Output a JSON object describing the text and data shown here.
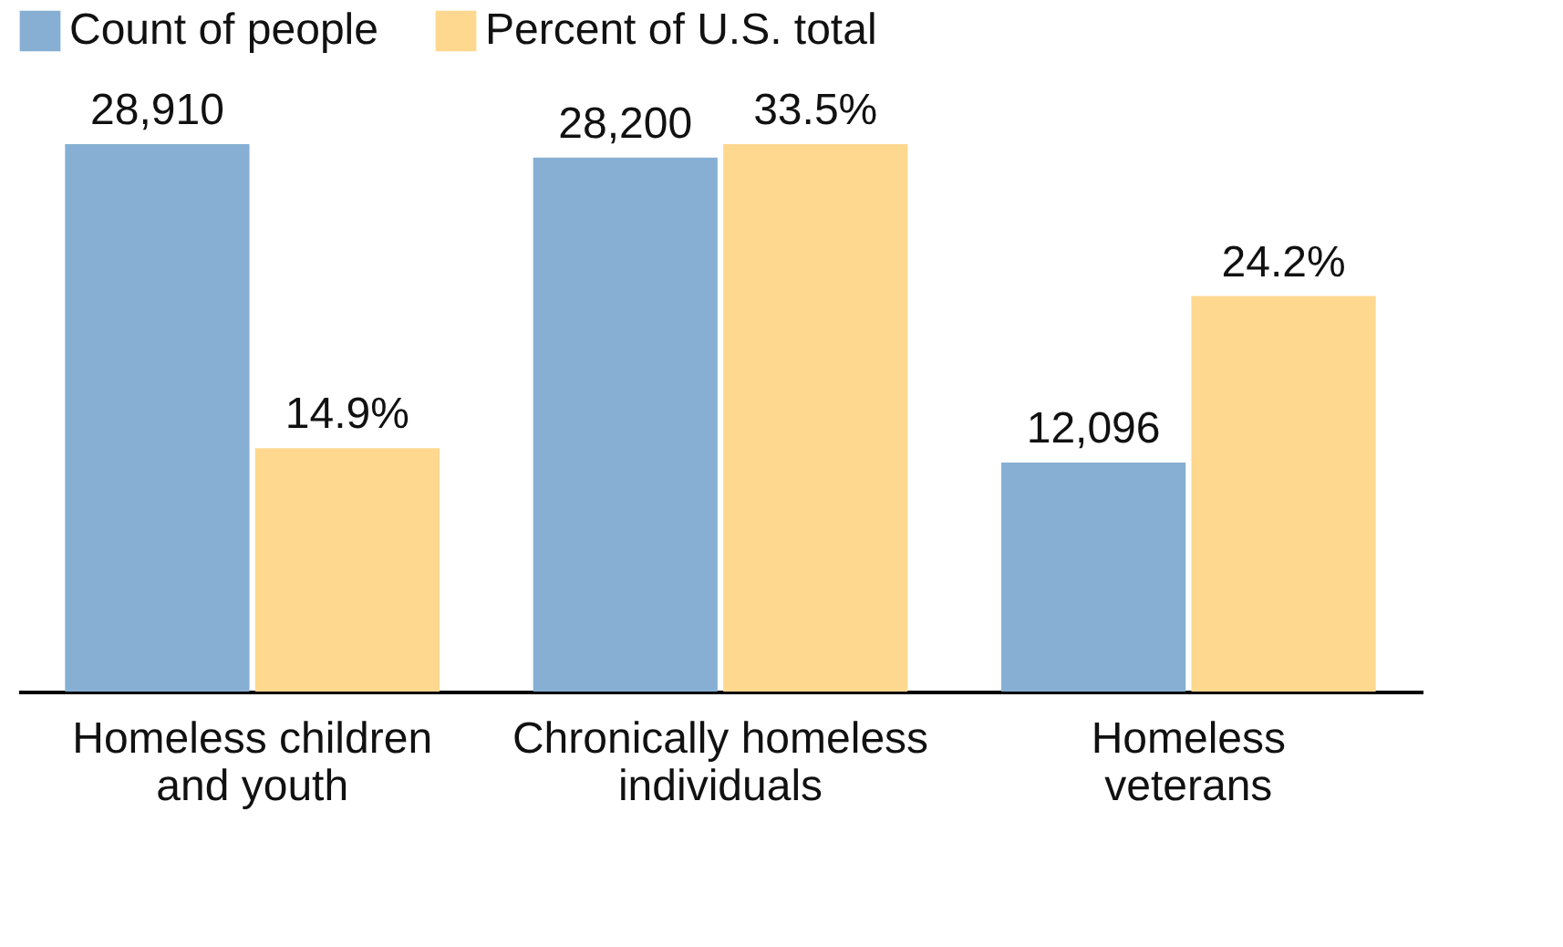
{
  "chart_data": {
    "type": "bar",
    "categories": [
      "Homeless children and youth",
      "Chronically homeless individuals",
      "Homeless veterans"
    ],
    "series": [
      {
        "name": "Count of people",
        "color": "#86afd3",
        "values": [
          28910,
          28200,
          12096
        ],
        "value_labels": [
          "28,910",
          "28,200",
          "12,096"
        ]
      },
      {
        "name": "Percent of U.S. total",
        "color": "#fed88f",
        "axis": "y2",
        "values": [
          14.9,
          33.5,
          24.2
        ],
        "value_labels": [
          "14.9%",
          "33.5%",
          "24.2%"
        ]
      }
    ],
    "tick_labels": "x",
    "legend": "top"
  }
}
